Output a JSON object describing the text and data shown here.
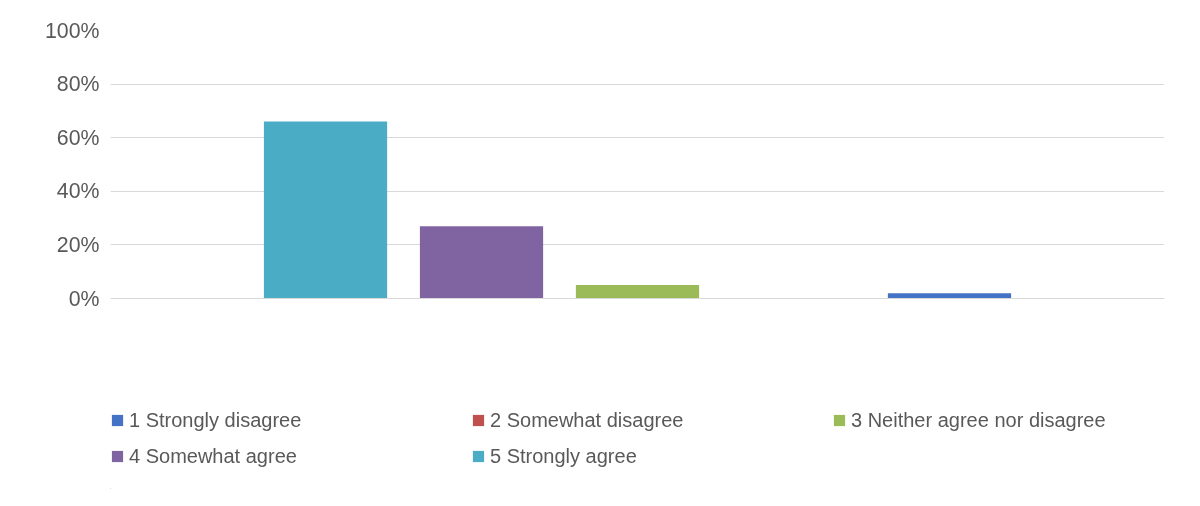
{
  "chart_data": {
    "type": "bar",
    "categories": [
      null
    ],
    "series": [
      {
        "name": "1 Strongly disagree",
        "color": "#4472c4",
        "values": [
          2
        ]
      },
      {
        "name": "2 Somewhat disagree",
        "color": "#c0504d",
        "values": [
          0
        ]
      },
      {
        "name": "3 Neither agree nor disagree",
        "color": "#9bbb59",
        "values": [
          5
        ]
      },
      {
        "name": "4 Somewhat agree",
        "color": "#8064a2",
        "values": [
          27
        ]
      },
      {
        "name": "5 Strongly agree",
        "color": "#4bacc6",
        "values": [
          66
        ]
      }
    ],
    "ylim": [
      0,
      100
    ],
    "yticks": [
      {
        "value": 0,
        "label": "0%"
      },
      {
        "value": 20,
        "label": "20%"
      },
      {
        "value": 40,
        "label": "40%"
      },
      {
        "value": 60,
        "label": "60%"
      },
      {
        "value": 80,
        "label": "80%"
      },
      {
        "value": 100,
        "label": "100%"
      }
    ],
    "grid": "y",
    "legend": "bottom"
  }
}
